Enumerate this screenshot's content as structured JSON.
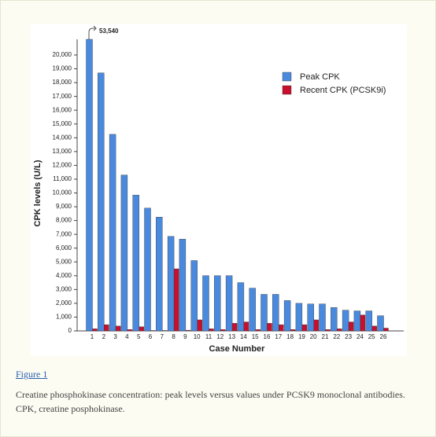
{
  "chart_data": {
    "type": "bar",
    "xlabel": "Case Number",
    "ylabel": "CPK levels (U/L)",
    "categories": [
      "1",
      "2",
      "3",
      "4",
      "5",
      "6",
      "7",
      "8",
      "9",
      "10",
      "11",
      "12",
      "13",
      "14",
      "15",
      "16",
      "17",
      "18",
      "19",
      "20",
      "21",
      "22",
      "23",
      "24",
      "25",
      "26"
    ],
    "series": [
      {
        "name": "Peak CPK",
        "color": "#4a8ade",
        "values": [
          53540,
          18700,
          14250,
          11300,
          9850,
          8900,
          8250,
          6850,
          6650,
          5100,
          4000,
          4000,
          4000,
          3500,
          3100,
          2650,
          2650,
          2200,
          2000,
          1950,
          1950,
          1700,
          1500,
          1450,
          1450,
          1100
        ],
        "value_labels": [
          "53,540",
          null,
          null,
          null,
          null,
          null,
          null,
          null,
          null,
          null,
          null,
          null,
          null,
          null,
          null,
          null,
          null,
          null,
          null,
          null,
          null,
          null,
          null,
          null,
          null,
          null
        ]
      },
      {
        "name": "Recent CPK (PCSK9i)",
        "color": "#c8102e",
        "values": [
          150,
          450,
          350,
          100,
          300,
          30,
          30,
          4500,
          50,
          800,
          150,
          100,
          550,
          650,
          100,
          550,
          450,
          100,
          450,
          800,
          100,
          150,
          650,
          1150,
          350,
          200
        ]
      }
    ],
    "ylim": [
      0,
      20000
    ],
    "yticks": [
      0,
      {
        "value": 1000,
        "label": "1,000"
      },
      {
        "value": 2000,
        "label": "2,000"
      },
      {
        "value": 3000,
        "label": "3,000"
      },
      {
        "value": 4000,
        "label": "4,000"
      },
      {
        "value": 5000,
        "label": "5,000"
      },
      {
        "value": 6000,
        "label": "6,000"
      },
      {
        "value": 7000,
        "label": "7,000"
      },
      {
        "value": 8000,
        "label": "8,000"
      },
      {
        "value": 9000,
        "label": "9,000"
      },
      {
        "value": 10000,
        "label": "10,000"
      },
      {
        "value": 11000,
        "label": "11,000"
      },
      {
        "value": 12000,
        "label": "12,000"
      },
      {
        "value": 13000,
        "label": "13,000"
      },
      {
        "value": 14000,
        "label": "14,000"
      },
      {
        "value": 15000,
        "label": "15,000"
      },
      {
        "value": 16000,
        "label": "16,000"
      },
      {
        "value": 17000,
        "label": "17,000"
      },
      {
        "value": 18000,
        "label": "18,000"
      },
      {
        "value": 19000,
        "label": "19,000"
      },
      {
        "value": 20000,
        "label": "20,000"
      }
    ],
    "grid": false,
    "legend": "upper right"
  },
  "figure": {
    "label": "Figure 1",
    "caption": "Creatine phosphokinase concentration: peak levels versus values under PCSK9 monoclonal antibodies. CPK, creatine posphokinase."
  }
}
